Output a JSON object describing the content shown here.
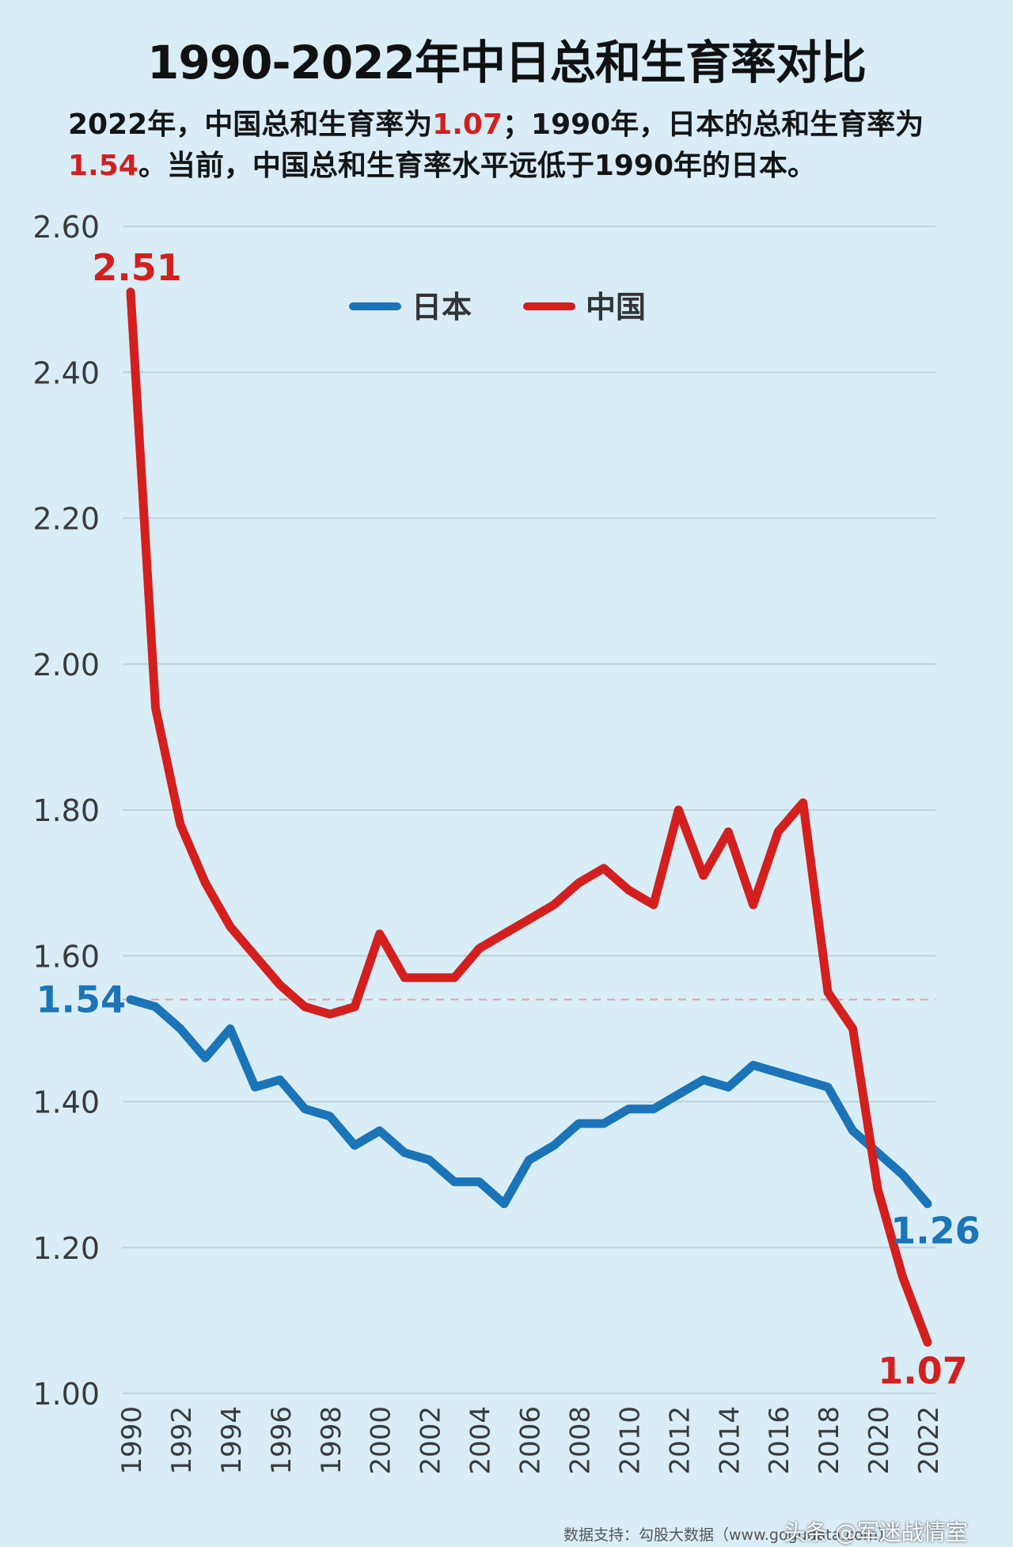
{
  "header": {
    "title": "1990-2022年中日总和生育率对比",
    "subtitle_part1": "2022年，中国总和生育率为",
    "subtitle_hl1": "1.07",
    "subtitle_part2": "；1990年，日本的总和生育率为",
    "subtitle_hl2": "1.54",
    "subtitle_part3": "。当前，中国总和生育率水平远低于1990年的日本。"
  },
  "colors": {
    "japan": "#1b74b8",
    "china": "#d41f1f",
    "grid": "#bcd3de",
    "reference_line": "#e3a3a3",
    "background": "#d9edf6"
  },
  "chart_data": {
    "type": "line",
    "title": "1990-2022年中日总和生育率对比",
    "x": [
      1990,
      1991,
      1992,
      1993,
      1994,
      1995,
      1996,
      1997,
      1998,
      1999,
      2000,
      2001,
      2002,
      2003,
      2004,
      2005,
      2006,
      2007,
      2008,
      2009,
      2010,
      2011,
      2012,
      2013,
      2014,
      2015,
      2016,
      2017,
      2018,
      2019,
      2020,
      2021,
      2022
    ],
    "x_tick_labels": [
      "1990",
      "1992",
      "1994",
      "1996",
      "1998",
      "2000",
      "2002",
      "2004",
      "2006",
      "2008",
      "2010",
      "2012",
      "2014",
      "2016",
      "2018",
      "2020",
      "2022"
    ],
    "y_tick_labels": [
      "1.00",
      "1.20",
      "1.40",
      "1.60",
      "1.80",
      "2.00",
      "2.20",
      "2.40",
      "2.60"
    ],
    "ylim": [
      1.0,
      2.6
    ],
    "grid": "horizontal",
    "legend_position": "top-center",
    "reference_line": 1.54,
    "series": [
      {
        "name": "日本",
        "color": "#1b74b8",
        "values": [
          1.54,
          1.53,
          1.5,
          1.46,
          1.5,
          1.42,
          1.43,
          1.39,
          1.38,
          1.34,
          1.36,
          1.33,
          1.32,
          1.29,
          1.29,
          1.26,
          1.32,
          1.34,
          1.37,
          1.37,
          1.39,
          1.39,
          1.41,
          1.43,
          1.42,
          1.45,
          1.44,
          1.43,
          1.42,
          1.36,
          1.33,
          1.3,
          1.26
        ]
      },
      {
        "name": "中国",
        "color": "#d41f1f",
        "values": [
          2.51,
          1.94,
          1.78,
          1.7,
          1.64,
          1.6,
          1.56,
          1.53,
          1.52,
          1.53,
          1.63,
          1.57,
          1.57,
          1.57,
          1.61,
          1.63,
          1.65,
          1.67,
          1.7,
          1.72,
          1.69,
          1.67,
          1.8,
          1.71,
          1.77,
          1.67,
          1.77,
          1.81,
          1.55,
          1.5,
          1.28,
          1.16,
          1.07
        ]
      }
    ],
    "annotations": [
      {
        "text": "2.51",
        "series": "中国",
        "x": 1990,
        "y": 2.51,
        "color": "#d41f1f"
      },
      {
        "text": "1.54",
        "series": "日本",
        "x": 1990,
        "y": 1.54,
        "color": "#1b74b8"
      },
      {
        "text": "1.26",
        "series": "日本",
        "x": 2022,
        "y": 1.26,
        "color": "#1b74b8"
      },
      {
        "text": "1.07",
        "series": "中国",
        "x": 2022,
        "y": 1.07,
        "color": "#d41f1f"
      }
    ]
  },
  "footer": {
    "source": "数据支持：勾股大数据（www.gogudata.com）",
    "credit": "头条 @军迷战情室"
  }
}
